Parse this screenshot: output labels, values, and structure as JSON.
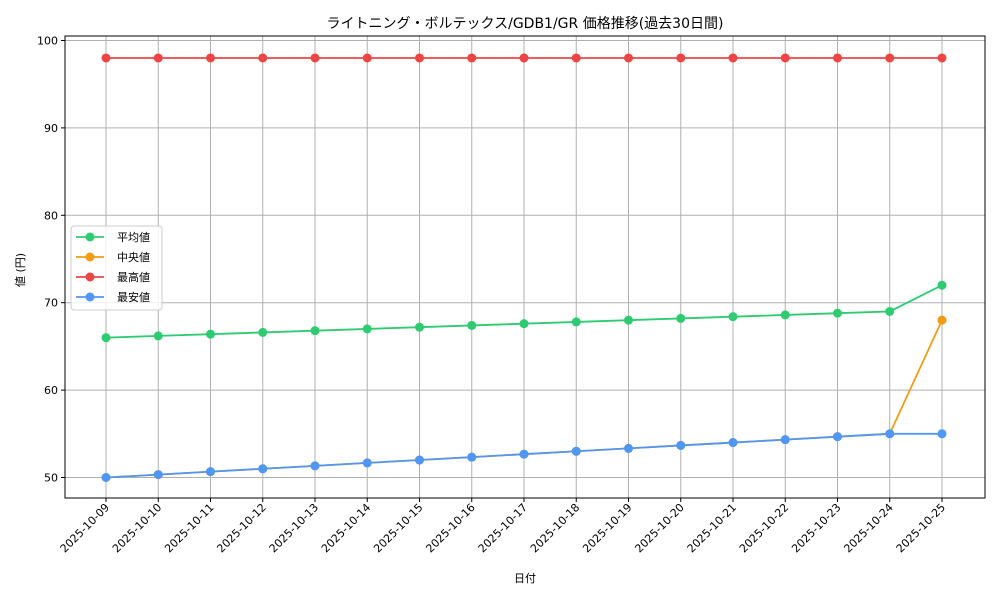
{
  "chart_data": {
    "type": "line",
    "title": "ライトニング・ボルテックス/GDB1/GR 価格推移(過去30日間)",
    "xlabel": "日付",
    "ylabel": "値 (円)",
    "ylim": [
      47.5,
      100.5
    ],
    "yticks": [
      50,
      60,
      70,
      80,
      90,
      100
    ],
    "grid": true,
    "legend_position": "center left",
    "categories": [
      "2025-10-09",
      "2025-10-10",
      "2025-10-11",
      "2025-10-12",
      "2025-10-13",
      "2025-10-14",
      "2025-10-15",
      "2025-10-16",
      "2025-10-17",
      "2025-10-18",
      "2025-10-19",
      "2025-10-20",
      "2025-10-21",
      "2025-10-22",
      "2025-10-23",
      "2025-10-24",
      "2025-10-25"
    ],
    "series": [
      {
        "name": "平均値",
        "color": "#2ecc71",
        "values": [
          66.0,
          66.2,
          66.4,
          66.6,
          66.8,
          67.0,
          67.2,
          67.4,
          67.6,
          67.8,
          68.0,
          68.2,
          68.4,
          68.6,
          68.8,
          69.0,
          72.0
        ]
      },
      {
        "name": "中央値",
        "color": "#f39c12",
        "values": [
          50.0,
          50.33,
          50.67,
          51.0,
          51.33,
          51.67,
          52.0,
          52.33,
          52.67,
          53.0,
          53.33,
          53.67,
          54.0,
          54.33,
          54.67,
          55.0,
          68.0
        ]
      },
      {
        "name": "最高値",
        "color": "#ef4444",
        "values": [
          98,
          98,
          98,
          98,
          98,
          98,
          98,
          98,
          98,
          98,
          98,
          98,
          98,
          98,
          98,
          98,
          98
        ]
      },
      {
        "name": "最安値",
        "color": "#4f97f5",
        "values": [
          50.0,
          50.33,
          50.67,
          51.0,
          51.33,
          51.67,
          52.0,
          52.33,
          52.67,
          53.0,
          53.33,
          53.67,
          54.0,
          54.33,
          54.67,
          55.0,
          55.0
        ]
      }
    ]
  }
}
